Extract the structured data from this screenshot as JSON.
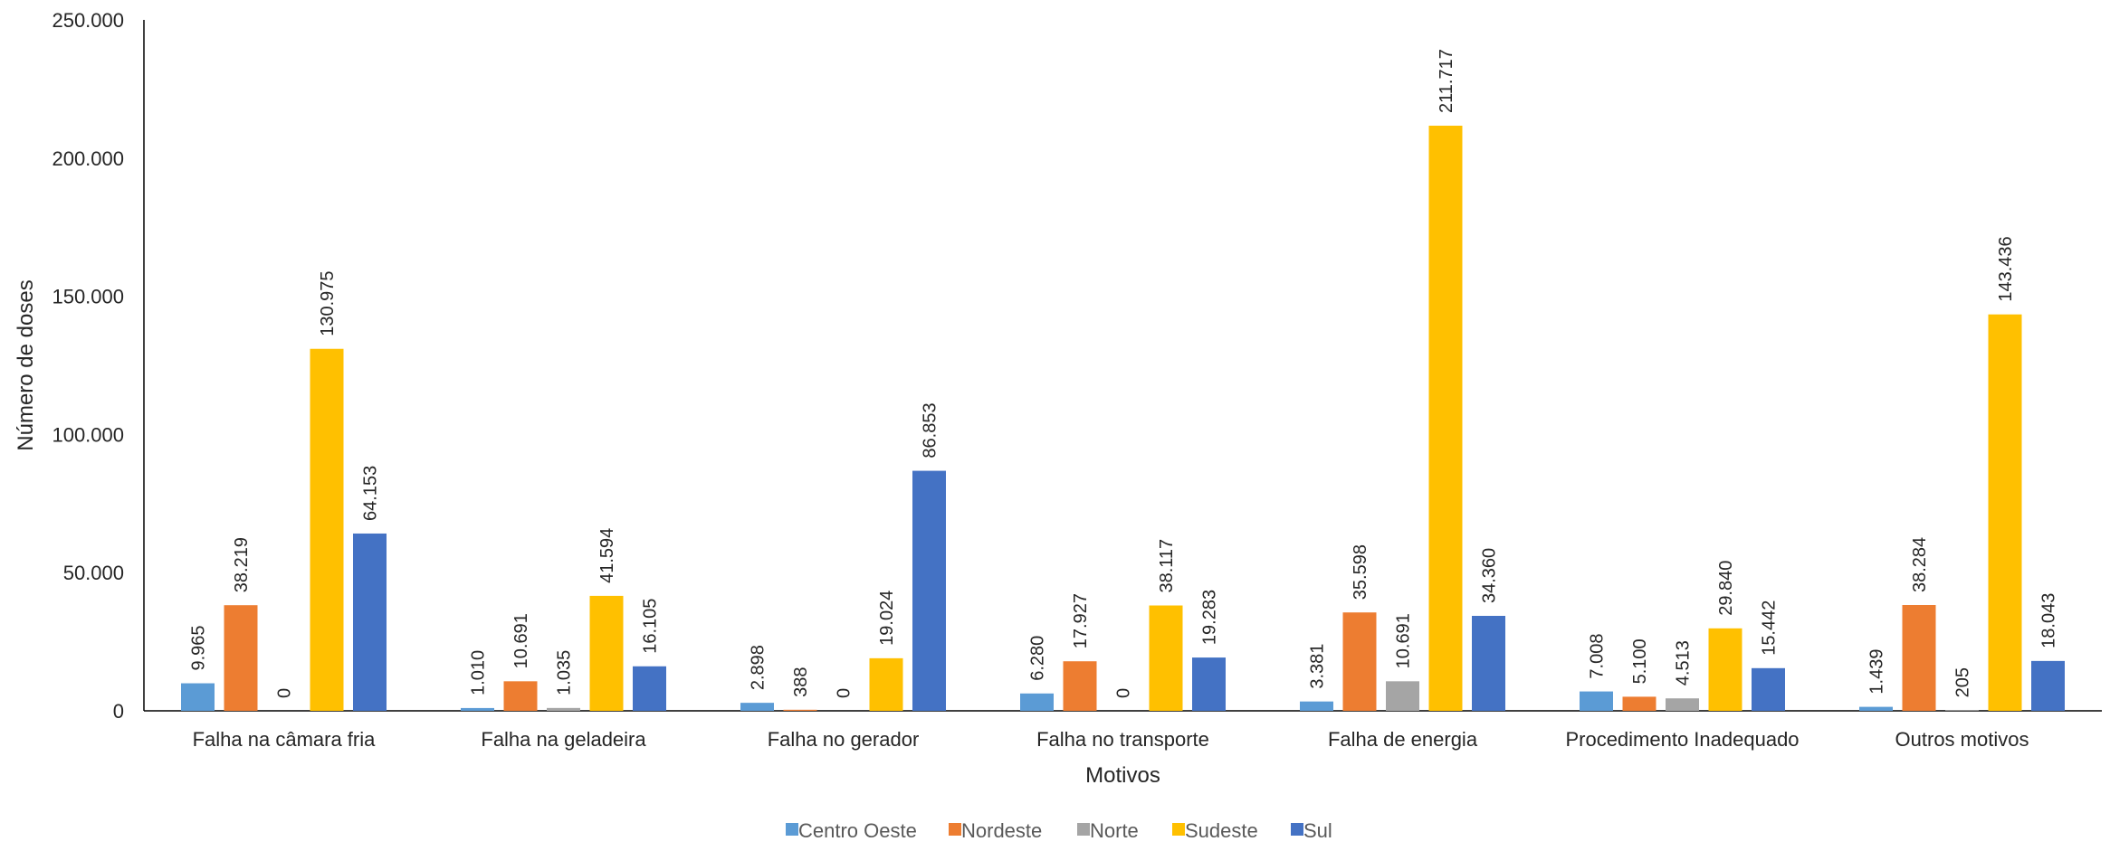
{
  "chart_data": {
    "type": "bar",
    "xlabel": "Motivos",
    "ylabel": "Número de doses",
    "ylim": [
      0,
      250000
    ],
    "yticks": [
      0,
      50000,
      100000,
      150000,
      200000,
      250000
    ],
    "ytick_labels": [
      "0",
      "50.000",
      "100.000",
      "150.000",
      "200.000",
      "250.000"
    ],
    "grid": false,
    "legend_position": "bottom",
    "categories": [
      "Falha na câmara fria",
      "Falha na geladeira",
      "Falha no gerador",
      "Falha no transporte",
      "Falha de energia",
      "Procedimento Inadequado",
      "Outros motivos"
    ],
    "series": [
      {
        "name": "Centro Oeste",
        "color": "#5B9BD5",
        "values": [
          9965,
          1010,
          2898,
          6280,
          3381,
          7008,
          1439
        ],
        "labels": [
          "9.965",
          "1.010",
          "2.898",
          "6.280",
          "3.381",
          "7.008",
          "1.439"
        ]
      },
      {
        "name": "Nordeste",
        "color": "#ED7D31",
        "values": [
          38219,
          10691,
          388,
          17927,
          35598,
          5100,
          38284
        ],
        "labels": [
          "38.219",
          "10.691",
          "388",
          "17.927",
          "35.598",
          "5.100",
          "38.284"
        ]
      },
      {
        "name": "Norte",
        "color": "#A5A5A5",
        "values": [
          0,
          1035,
          0,
          0,
          10691,
          4513,
          205
        ],
        "labels": [
          "0",
          "1.035",
          "0",
          "0",
          "10.691",
          "4.513",
          "205"
        ]
      },
      {
        "name": "Sudeste",
        "color": "#FFC000",
        "values": [
          130975,
          41594,
          19024,
          38117,
          211717,
          29840,
          143436
        ],
        "labels": [
          "130.975",
          "41.594",
          "19.024",
          "38.117",
          "211.717",
          "29.840",
          "143.436"
        ]
      },
      {
        "name": "Sul",
        "color": "#4472C4",
        "values": [
          64153,
          16105,
          86853,
          19283,
          34360,
          15442,
          18043
        ],
        "labels": [
          "64.153",
          "16.105",
          "86.853",
          "19.283",
          "34.360",
          "15.442",
          "18.043"
        ]
      }
    ]
  }
}
